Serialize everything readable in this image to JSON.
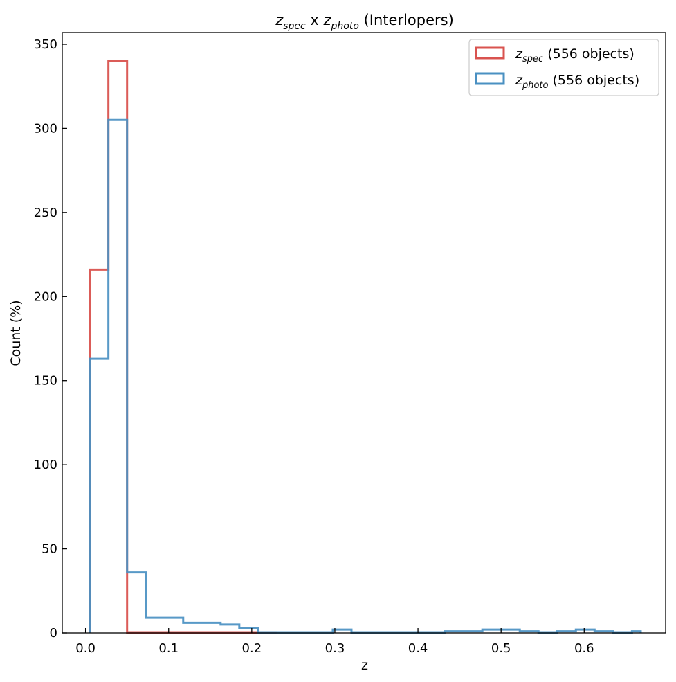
{
  "chart_data": {
    "type": "histogram-step",
    "title": {
      "sym1": "z",
      "sub1": "spec",
      "mid": " x ",
      "sym2": "z",
      "sub2": "photo",
      "rest": " (Interlopers)"
    },
    "xlabel": "z",
    "ylabel": "Count (%)",
    "xlim": [
      -0.028,
      0.698
    ],
    "ylim": [
      0,
      357
    ],
    "xticks": [
      0.0,
      0.1,
      0.2,
      0.3,
      0.4,
      0.5,
      0.6
    ],
    "xtick_labels": [
      "0.0",
      "0.1",
      "0.2",
      "0.3",
      "0.4",
      "0.5",
      "0.6"
    ],
    "yticks": [
      0,
      50,
      100,
      150,
      200,
      250,
      300,
      350
    ],
    "ytick_labels": [
      "0",
      "50",
      "100",
      "150",
      "200",
      "250",
      "300",
      "350"
    ],
    "grid": false,
    "legend_position": "top-right",
    "series": [
      {
        "name_sym": "z",
        "name_sub": "spec",
        "name_rest": " (556 objects)",
        "color": "#d9534f",
        "edges": [
          0.005,
          0.0275,
          0.05,
          0.0725,
          0.095,
          0.1175,
          0.14,
          0.1625,
          0.185,
          0.2075,
          0.23
        ],
        "counts": [
          216,
          340,
          0,
          0,
          0,
          0,
          0,
          0,
          0,
          0
        ]
      },
      {
        "name_sym": "z",
        "name_sub": "photo",
        "name_rest": " (556 objects)",
        "color": "#4a90c2",
        "edges": [
          0.005,
          0.0275,
          0.05,
          0.0725,
          0.095,
          0.1175,
          0.14,
          0.1625,
          0.185,
          0.2075,
          0.23,
          0.2525,
          0.275,
          0.2975,
          0.32,
          0.3425,
          0.365,
          0.3875,
          0.41,
          0.4325,
          0.455,
          0.4775,
          0.5,
          0.5225,
          0.545,
          0.5675,
          0.59,
          0.6125,
          0.635,
          0.6575,
          0.668
        ],
        "counts": [
          163,
          305,
          36,
          9,
          9,
          6,
          6,
          5,
          3,
          0,
          0,
          0,
          0,
          2,
          0,
          0,
          0,
          0,
          0,
          1,
          1,
          2,
          2,
          1,
          0,
          1,
          2,
          1,
          0,
          1
        ]
      }
    ]
  }
}
